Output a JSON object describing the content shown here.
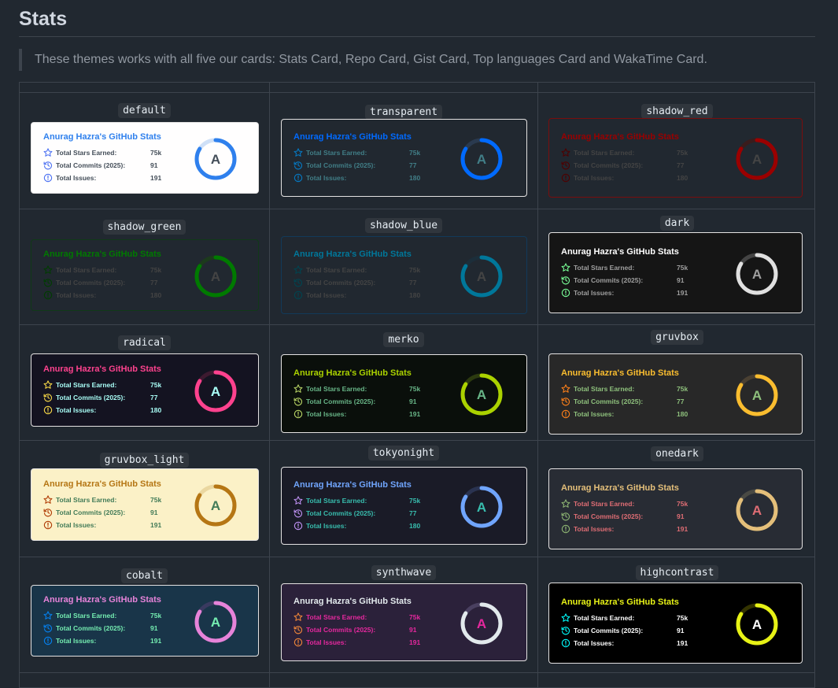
{
  "page": {
    "heading": "Stats",
    "note": "These themes works with all five our cards: Stats Card, Repo Card, Gist Card, Top languages Card and WakaTime Card."
  },
  "card_text": {
    "rank": "A",
    "stars_label": "Total Stars Earned:",
    "commits_label": "Total Commits (2025):",
    "issues_label": "Total Issues:"
  },
  "themes": [
    {
      "name": "default",
      "title": "Anurag Hazra's GitHub Stats",
      "stars": "75k",
      "commits": "91",
      "issues": "191",
      "colors": {
        "bg": "#fffefe",
        "border": "#e4e2e2",
        "title": "#2f80ed",
        "text": "#434d58",
        "icon": "#4c71f2",
        "ring": "#2f80ed",
        "track": "#cfe0f7"
      }
    },
    {
      "name": "transparent",
      "title": "Anurag Hazra's GitHub Stats",
      "stars": "75k",
      "commits": "77",
      "issues": "180",
      "colors": {
        "bg": "#212830",
        "border": "#e4e2e2",
        "title": "#006aff",
        "text": "#417e87",
        "icon": "#0579c3",
        "ring": "#006aff",
        "track": "#2a3a4f"
      }
    },
    {
      "name": "shadow_red",
      "title": "Anurag Hazra's GitHub Stats",
      "stars": "75k",
      "commits": "77",
      "issues": "180",
      "colors": {
        "bg": "#212830",
        "border": "#7a0d0d",
        "title": "#9a0000",
        "text": "#444444",
        "icon": "#4f0000",
        "ring": "#9a0000",
        "track": "#3a1c1c"
      }
    },
    {
      "name": "shadow_green",
      "title": "Anurag Hazra's GitHub Stats",
      "stars": "75k",
      "commits": "77",
      "issues": "180",
      "colors": {
        "bg": "#212830",
        "border": "#103a18",
        "title": "#007a00",
        "text": "#444444",
        "icon": "#003d00",
        "ring": "#007a00",
        "track": "#1c3a1c"
      }
    },
    {
      "name": "shadow_blue",
      "title": "Anurag Hazra's GitHub Stats",
      "stars": "75k",
      "commits": "77",
      "issues": "180",
      "colors": {
        "bg": "#212830",
        "border": "#123a5a",
        "title": "#00779a",
        "text": "#444444",
        "icon": "#004450",
        "ring": "#00779a",
        "track": "#1c2e3a"
      }
    },
    {
      "name": "dark",
      "title": "Anurag Hazra's GitHub Stats",
      "stars": "75k",
      "commits": "91",
      "issues": "191",
      "colors": {
        "bg": "#151515",
        "border": "#e4e2e2",
        "title": "#ffffff",
        "text": "#9f9f9f",
        "icon": "#79ff97",
        "ring": "#e0e0e0",
        "track": "#444444"
      }
    },
    {
      "name": "radical",
      "title": "Anurag Hazra's GitHub Stats",
      "stars": "75k",
      "commits": "77",
      "issues": "180",
      "colors": {
        "bg": "#141321",
        "border": "#e4e2e2",
        "title": "#fe428e",
        "text": "#a9fef7",
        "icon": "#f8d847",
        "ring": "#fe428e",
        "track": "#3d1a30"
      }
    },
    {
      "name": "merko",
      "title": "Anurag Hazra's GitHub Stats",
      "stars": "75k",
      "commits": "91",
      "issues": "191",
      "colors": {
        "bg": "#0a0f0b",
        "border": "#e4e2e2",
        "title": "#abd200",
        "text": "#68b587",
        "icon": "#b7d364",
        "ring": "#abd200",
        "track": "#2c3a10"
      }
    },
    {
      "name": "gruvbox",
      "title": "Anurag Hazra's GitHub Stats",
      "stars": "75k",
      "commits": "77",
      "issues": "180",
      "colors": {
        "bg": "#282828",
        "border": "#e4e2e2",
        "title": "#fabd2f",
        "text": "#8ec07c",
        "icon": "#fe8019",
        "ring": "#fabd2f",
        "track": "#4a4032"
      }
    },
    {
      "name": "gruvbox_light",
      "title": "Anurag Hazra's GitHub Stats",
      "stars": "75k",
      "commits": "91",
      "issues": "191",
      "colors": {
        "bg": "#fbf1c7",
        "border": "#e4e2e2",
        "title": "#b57614",
        "text": "#427b58",
        "icon": "#af3a03",
        "ring": "#b57614",
        "track": "#ead7a0"
      }
    },
    {
      "name": "tokyonight",
      "title": "Anurag Hazra's GitHub Stats",
      "stars": "75k",
      "commits": "77",
      "issues": "180",
      "colors": {
        "bg": "#1a1b27",
        "border": "#e4e2e2",
        "title": "#70a5fd",
        "text": "#38bdae",
        "icon": "#bf91f3",
        "ring": "#70a5fd",
        "track": "#2a3350"
      }
    },
    {
      "name": "onedark",
      "title": "Anurag Hazra's GitHub Stats",
      "stars": "75k",
      "commits": "91",
      "issues": "191",
      "colors": {
        "bg": "#282c34",
        "border": "#e4e2e2",
        "title": "#e4bf7a",
        "text": "#df6d74",
        "icon": "#8eb573",
        "ring": "#e4bf7a",
        "track": "#4a4a44"
      }
    },
    {
      "name": "cobalt",
      "title": "Anurag Hazra's GitHub Stats",
      "stars": "75k",
      "commits": "91",
      "issues": "191",
      "colors": {
        "bg": "#193549",
        "border": "#e4e2e2",
        "title": "#e683d9",
        "text": "#75eeb2",
        "icon": "#0480ef",
        "ring": "#e683d9",
        "track": "#3a3a60"
      }
    },
    {
      "name": "synthwave",
      "title": "Anurag Hazra's GitHub Stats",
      "stars": "75k",
      "commits": "91",
      "issues": "191",
      "colors": {
        "bg": "#2b213a",
        "border": "#e4e2e2",
        "title": "#e2e9ec",
        "text": "#e5289e",
        "icon": "#ef8539",
        "ring": "#e2e9ec",
        "track": "#4a4060"
      }
    },
    {
      "name": "highcontrast",
      "title": "Anurag Hazra's GitHub Stats",
      "stars": "75k",
      "commits": "91",
      "issues": "191",
      "colors": {
        "bg": "#000000",
        "border": "#e4e2e2",
        "title": "#e7f216",
        "text": "#ffffff",
        "icon": "#00ffff",
        "ring": "#e7f216",
        "track": "#333300"
      }
    }
  ]
}
